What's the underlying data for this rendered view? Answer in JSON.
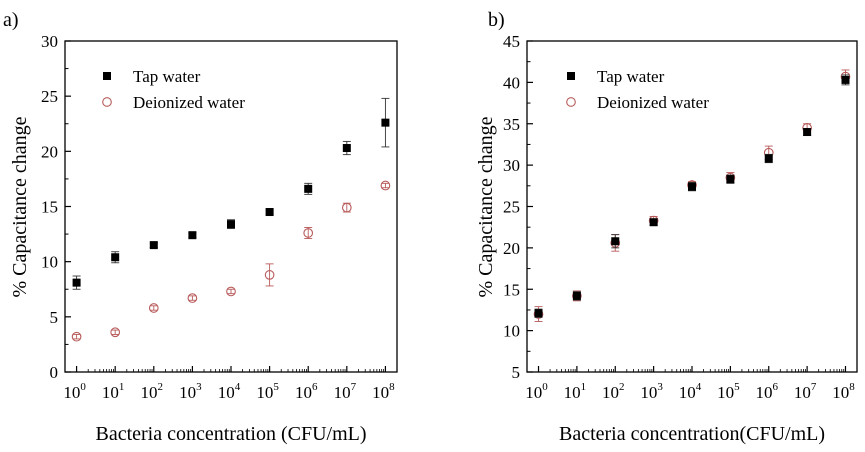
{
  "figure": {
    "panels": [
      {
        "label": "a)"
      },
      {
        "label": "b)"
      }
    ]
  },
  "colors": {
    "tap": "#000000",
    "deionized": "#b85a5a",
    "axis": "#000000"
  },
  "chart_data": [
    {
      "type": "scatter",
      "panel": "a)",
      "title": "",
      "xlabel": "Bacteria concentration (CFU/mL)",
      "ylabel": "% Capacitance change",
      "x_scale": "log10",
      "x": [
        1,
        10,
        100,
        1000,
        10000,
        100000,
        1000000,
        10000000,
        100000000
      ],
      "xtick_base": "10",
      "xtick_exponents": [
        "0",
        "1",
        "2",
        "3",
        "4",
        "5",
        "6",
        "7",
        "8"
      ],
      "ylim": [
        0,
        30
      ],
      "yticks": [
        "0",
        "5",
        "10",
        "15",
        "20",
        "25",
        "30"
      ],
      "legend_position": "top-left",
      "series": [
        {
          "name": "Tap water",
          "marker": "filled-square",
          "values": [
            8.1,
            10.4,
            11.5,
            12.4,
            13.4,
            14.5,
            16.6,
            20.3,
            22.6
          ],
          "errors": [
            0.6,
            0.5,
            0.2,
            0.2,
            0.4,
            0.2,
            0.5,
            0.6,
            2.2
          ]
        },
        {
          "name": "Deionized water",
          "marker": "open-circle",
          "values": [
            3.2,
            3.6,
            5.8,
            6.7,
            7.3,
            8.8,
            12.6,
            14.9,
            16.9
          ],
          "errors": [
            0.2,
            0.2,
            0.2,
            0.2,
            0.2,
            1.0,
            0.5,
            0.4,
            0.2
          ]
        }
      ]
    },
    {
      "type": "scatter",
      "panel": "b)",
      "title": "",
      "xlabel": "Bacteria concentration(CFU/mL)",
      "ylabel": "% Capacitance change",
      "x_scale": "log10",
      "x": [
        1,
        10,
        100,
        1000,
        10000,
        100000,
        1000000,
        10000000,
        100000000
      ],
      "xtick_base": "10",
      "xtick_exponents": [
        "0",
        "1",
        "2",
        "3",
        "4",
        "5",
        "6",
        "7",
        "8"
      ],
      "ylim": [
        5,
        45
      ],
      "yticks": [
        "5",
        "10",
        "15",
        "20",
        "25",
        "30",
        "35",
        "40",
        "45"
      ],
      "legend_position": "top-left",
      "series": [
        {
          "name": "Tap water",
          "marker": "filled-square",
          "values": [
            12.1,
            14.2,
            20.8,
            23.1,
            27.4,
            28.3,
            30.8,
            34.0,
            40.3
          ],
          "errors": [
            0.5,
            0.5,
            0.8,
            0.4,
            0.5,
            0.5,
            0.5,
            0.4,
            0.6
          ]
        },
        {
          "name": "Deionized water",
          "marker": "open-circle",
          "values": [
            12.0,
            14.2,
            20.6,
            23.3,
            27.6,
            28.5,
            31.5,
            34.5,
            40.7
          ],
          "errors": [
            0.9,
            0.6,
            1.0,
            0.5,
            0.4,
            0.6,
            0.8,
            0.5,
            0.8
          ]
        }
      ]
    }
  ]
}
